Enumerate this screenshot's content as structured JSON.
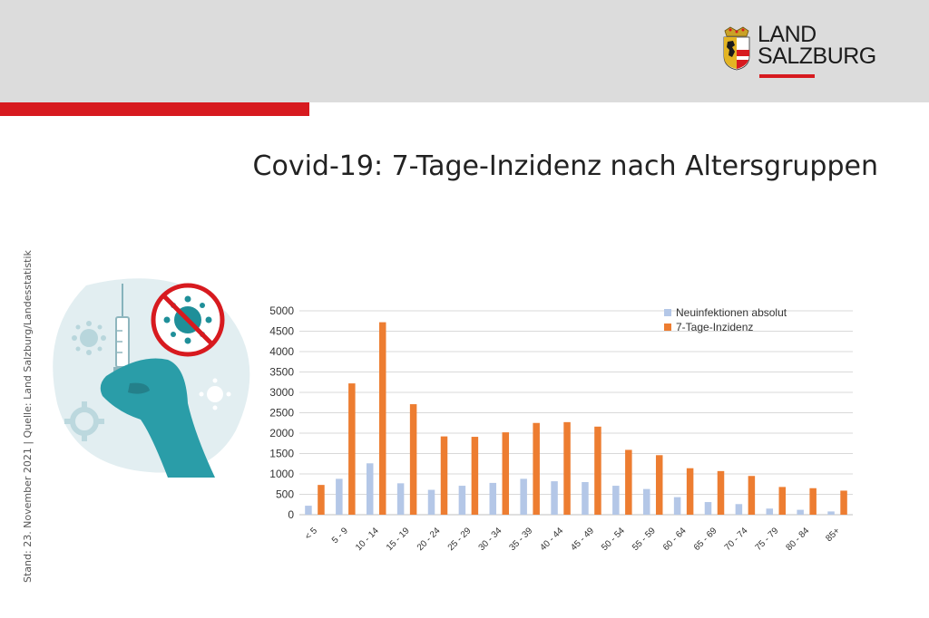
{
  "header": {
    "logo": {
      "name": "land-salzburg-logo",
      "line1": "LAND",
      "line2": "SALZBURG"
    }
  },
  "title": "Covid-19: 7-Tage-Inzidenz nach Altersgruppen",
  "side_note": "Stand: 23. November 2021 | Quelle: Land Salzburg/Landesstatistik",
  "illustration": {
    "icon": "vaccine-syringe-hand-no-virus-icon"
  },
  "colors": {
    "brand_red": "#d71a1f",
    "series_absolute": "#b4c7e7",
    "series_incidence": "#ed7d31"
  },
  "chart_data": {
    "type": "bar",
    "categories": [
      "< 5",
      "5 - 9",
      "10 - 14",
      "15 - 19",
      "20 - 24",
      "25 - 29",
      "30 - 34",
      "35 - 39",
      "40 - 44",
      "45 - 49",
      "50 - 54",
      "55 - 59",
      "60 - 64",
      "65 - 69",
      "70 - 74",
      "75 - 79",
      "80 - 84",
      "85+"
    ],
    "series": [
      {
        "name": "Neuinfektionen absolut",
        "color": "#b4c7e7",
        "values": [
          220,
          880,
          1260,
          770,
          610,
          710,
          780,
          880,
          820,
          800,
          710,
          630,
          430,
          310,
          260,
          150,
          120,
          80
        ]
      },
      {
        "name": "7-Tage-Inzidenz",
        "color": "#ed7d31",
        "values": [
          730,
          3220,
          4720,
          2710,
          1920,
          1910,
          2020,
          2250,
          2270,
          2160,
          1590,
          1460,
          1140,
          1070,
          950,
          680,
          650,
          590
        ]
      }
    ],
    "ylim": [
      0,
      5000
    ],
    "yticks": [
      0,
      500,
      1000,
      1500,
      2000,
      2500,
      3000,
      3500,
      4000,
      4500,
      5000
    ],
    "grid": true,
    "legend": "top-right"
  }
}
